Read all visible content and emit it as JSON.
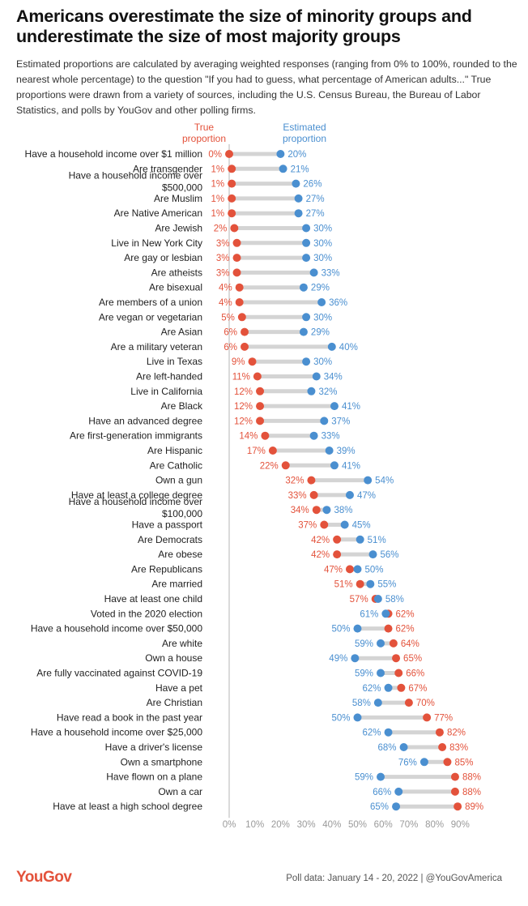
{
  "title": "Americans overestimate the size of minority groups and underestimate the size of most majority groups",
  "subtitle": "Estimated proportions are calculated by averaging weighted responses (ranging from 0% to 100%, rounded to the nearest whole percentage) to the question \"If you had to guess, what percentage of American adults...\" True proportions were drawn from a variety of sources, including the U.S. Census Bureau, the Bureau of Labor Statistics, and polls by YouGov and other polling firms.",
  "legend": {
    "true_line1": "True",
    "true_line2": "proportion",
    "est_line1": "Estimated",
    "est_line2": "proportion"
  },
  "colors": {
    "true": "#e3523b",
    "estimated": "#4a8fd0",
    "connector": "#d4d4d4",
    "axis": "#b5b5b5"
  },
  "footer": {
    "logo": "YouGov",
    "source": "Poll data: January 14 - 20, 2022 | @YouGovAmerica"
  },
  "chart_data": {
    "type": "dot-plot",
    "xlim": [
      0,
      100
    ],
    "xticks": [
      "0%",
      "10%",
      "20%",
      "30%",
      "40%",
      "50%",
      "60%",
      "70%",
      "80%",
      "90%"
    ],
    "series": [
      {
        "name": "True proportion"
      },
      {
        "name": "Estimated proportion"
      }
    ],
    "rows": [
      {
        "label": [
          "Have a household income over $1 million"
        ],
        "true": 0,
        "est": 20
      },
      {
        "label": [
          "Are transgender"
        ],
        "true": 1,
        "est": 21
      },
      {
        "label": [
          "Have a household income over",
          "$500,000"
        ],
        "true": 1,
        "est": 26
      },
      {
        "label": [
          "Are Muslim"
        ],
        "true": 1,
        "est": 27
      },
      {
        "label": [
          "Are Native American"
        ],
        "true": 1,
        "est": 27
      },
      {
        "label": [
          "Are Jewish"
        ],
        "true": 2,
        "est": 30
      },
      {
        "label": [
          "Live in New York City"
        ],
        "true": 3,
        "est": 30
      },
      {
        "label": [
          "Are gay or lesbian"
        ],
        "true": 3,
        "est": 30
      },
      {
        "label": [
          "Are atheists"
        ],
        "true": 3,
        "est": 33
      },
      {
        "label": [
          "Are bisexual"
        ],
        "true": 4,
        "est": 29
      },
      {
        "label": [
          "Are members of a union"
        ],
        "true": 4,
        "est": 36
      },
      {
        "label": [
          "Are vegan or vegetarian"
        ],
        "true": 5,
        "est": 30
      },
      {
        "label": [
          "Are Asian"
        ],
        "true": 6,
        "est": 29
      },
      {
        "label": [
          "Are a military veteran"
        ],
        "true": 6,
        "est": 40
      },
      {
        "label": [
          "Live in Texas"
        ],
        "true": 9,
        "est": 30
      },
      {
        "label": [
          "Are left-handed"
        ],
        "true": 11,
        "est": 34
      },
      {
        "label": [
          "Live in California"
        ],
        "true": 12,
        "est": 32
      },
      {
        "label": [
          "Are Black"
        ],
        "true": 12,
        "est": 41
      },
      {
        "label": [
          "Have an advanced degree"
        ],
        "true": 12,
        "est": 37
      },
      {
        "label": [
          "Are first-generation immigrants"
        ],
        "true": 14,
        "est": 33
      },
      {
        "label": [
          "Are Hispanic"
        ],
        "true": 17,
        "est": 39
      },
      {
        "label": [
          "Are Catholic"
        ],
        "true": 22,
        "est": 41
      },
      {
        "label": [
          "Own a gun"
        ],
        "true": 32,
        "est": 54
      },
      {
        "label": [
          "Have at least a college degree"
        ],
        "true": 33,
        "est": 47
      },
      {
        "label": [
          "Have a household income over",
          "$100,000"
        ],
        "true": 34,
        "est": 38
      },
      {
        "label": [
          "Have a passport"
        ],
        "true": 37,
        "est": 45
      },
      {
        "label": [
          "Are Democrats"
        ],
        "true": 42,
        "est": 51
      },
      {
        "label": [
          "Are obese"
        ],
        "true": 42,
        "est": 56
      },
      {
        "label": [
          "Are Republicans"
        ],
        "true": 47,
        "est": 50
      },
      {
        "label": [
          "Are married"
        ],
        "true": 51,
        "est": 55
      },
      {
        "label": [
          "Have at least one child"
        ],
        "true": 57,
        "est": 58
      },
      {
        "label": [
          "Voted in the 2020 election"
        ],
        "true": 62,
        "est": 61
      },
      {
        "label": [
          "Have a household income over $50,000"
        ],
        "true": 62,
        "est": 50
      },
      {
        "label": [
          "Are white"
        ],
        "true": 64,
        "est": 59
      },
      {
        "label": [
          "Own a house"
        ],
        "true": 65,
        "est": 49
      },
      {
        "label": [
          "Are fully vaccinated against COVID-19"
        ],
        "true": 66,
        "est": 59
      },
      {
        "label": [
          "Have a pet"
        ],
        "true": 67,
        "est": 62
      },
      {
        "label": [
          "Are Christian"
        ],
        "true": 70,
        "est": 58
      },
      {
        "label": [
          "Have read a book in the past year"
        ],
        "true": 77,
        "est": 50
      },
      {
        "label": [
          "Have a household income over $25,000"
        ],
        "true": 82,
        "est": 62
      },
      {
        "label": [
          "Have a driver's license"
        ],
        "true": 83,
        "est": 68
      },
      {
        "label": [
          "Own a smartphone"
        ],
        "true": 85,
        "est": 76
      },
      {
        "label": [
          "Have flown on a plane"
        ],
        "true": 88,
        "est": 59
      },
      {
        "label": [
          "Own a car"
        ],
        "true": 88,
        "est": 66
      },
      {
        "label": [
          "Have at least a high school degree"
        ],
        "true": 89,
        "est": 65
      }
    ]
  }
}
